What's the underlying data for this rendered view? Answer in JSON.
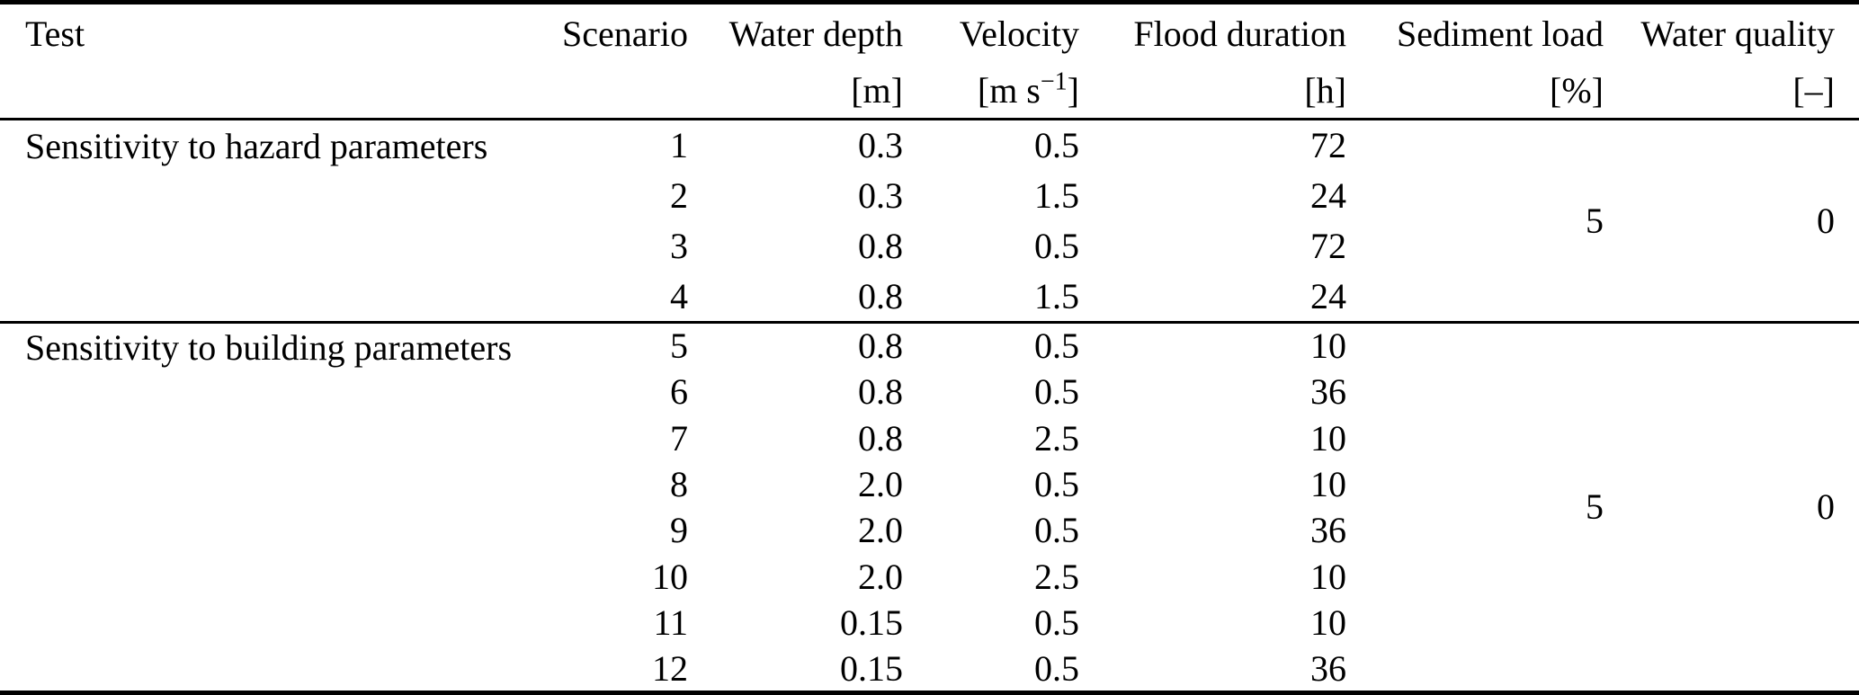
{
  "table": {
    "columns": {
      "test": {
        "label": "Test",
        "unit": ""
      },
      "scenario": {
        "label": "Scenario",
        "unit": ""
      },
      "water_depth": {
        "label": "Water depth",
        "unit": "[m]"
      },
      "velocity": {
        "label": "Velocity",
        "unit_pre": "[m s",
        "unit_sup": "−1",
        "unit_post": "]"
      },
      "flood_duration": {
        "label": "Flood duration",
        "unit": "[h]"
      },
      "sediment_load": {
        "label": "Sediment load",
        "unit": "[%]"
      },
      "water_quality": {
        "label": "Water quality",
        "unit": "[–]"
      }
    },
    "sections": [
      {
        "label": "Sensitivity to hazard parameters",
        "sediment_load": "5",
        "water_quality": "0",
        "rows": [
          {
            "scenario": "1",
            "water_depth": "0.3",
            "velocity": "0.5",
            "flood_duration": "72"
          },
          {
            "scenario": "2",
            "water_depth": "0.3",
            "velocity": "1.5",
            "flood_duration": "24"
          },
          {
            "scenario": "3",
            "water_depth": "0.8",
            "velocity": "0.5",
            "flood_duration": "72"
          },
          {
            "scenario": "4",
            "water_depth": "0.8",
            "velocity": "1.5",
            "flood_duration": "24"
          }
        ]
      },
      {
        "label": "Sensitivity to building parameters",
        "sediment_load": "5",
        "water_quality": "0",
        "rows": [
          {
            "scenario": "5",
            "water_depth": "0.8",
            "velocity": "0.5",
            "flood_duration": "10"
          },
          {
            "scenario": "6",
            "water_depth": "0.8",
            "velocity": "0.5",
            "flood_duration": "36"
          },
          {
            "scenario": "7",
            "water_depth": "0.8",
            "velocity": "2.5",
            "flood_duration": "10"
          },
          {
            "scenario": "8",
            "water_depth": "2.0",
            "velocity": "0.5",
            "flood_duration": "10"
          },
          {
            "scenario": "9",
            "water_depth": "2.0",
            "velocity": "0.5",
            "flood_duration": "36"
          },
          {
            "scenario": "10",
            "water_depth": "2.0",
            "velocity": "2.5",
            "flood_duration": "10"
          },
          {
            "scenario": "11",
            "water_depth": "0.15",
            "velocity": "0.5",
            "flood_duration": "10"
          },
          {
            "scenario": "12",
            "water_depth": "0.15",
            "velocity": "0.5",
            "flood_duration": "36"
          }
        ]
      }
    ]
  }
}
